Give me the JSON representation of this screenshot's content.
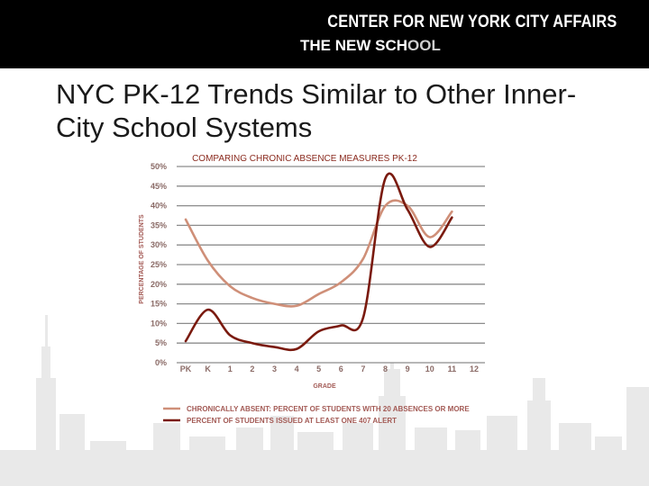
{
  "header": {
    "org_line1": "CENTER FOR NEW YORK CITY AFFAIRS",
    "org_line2_a": "THE NEW SCH",
    "org_line2_b": "OOL"
  },
  "slide": {
    "title": "NYC PK-12 Trends Similar to Other Inner-City School Systems"
  },
  "colors": {
    "series_light": "#cf8f78",
    "series_dark": "#7a1a0e",
    "grid": "#8c8c8c",
    "plot_bg": "#ffffff",
    "skyline": "#e9e9e9"
  },
  "chart_data": {
    "type": "line",
    "title": "COMPARING CHRONIC ABSENCE MEASURES PK-12",
    "xlabel": "GRADE",
    "ylabel": "PERCENTAGE OF STUDENTS",
    "categories": [
      "PK",
      "K",
      "1",
      "2",
      "3",
      "4",
      "5",
      "6",
      "7",
      "8",
      "9",
      "10",
      "11",
      "12"
    ],
    "ylim": [
      0,
      50
    ],
    "yticks": [
      "0%",
      "5%",
      "10%",
      "15%",
      "20%",
      "25%",
      "30%",
      "35%",
      "40%",
      "45%",
      "50%"
    ],
    "grid": true,
    "legend_position": "bottom",
    "series": [
      {
        "name": "CHRONICALLY ABSENT: PERCENT OF STUDENTS WITH 20 ABSENCES OR MORE",
        "color": "#cf8f78",
        "values": [
          36.5,
          26,
          19.5,
          16.5,
          15,
          14.5,
          17.5,
          20.5,
          26.5,
          40,
          40,
          32,
          38.5,
          null
        ]
      },
      {
        "name": "PERCENT OF STUDENTS ISSUED AT LEAST ONE 407 ALERT",
        "color": "#7a1a0e",
        "values": [
          5.5,
          13.5,
          7,
          5,
          4,
          3.5,
          8,
          9.5,
          11.5,
          47,
          39,
          29.5,
          37,
          null
        ]
      }
    ]
  }
}
